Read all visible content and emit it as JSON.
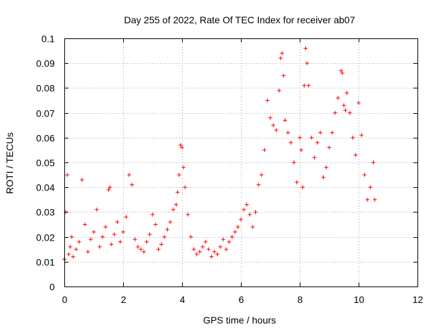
{
  "chart_data": {
    "type": "scatter",
    "title": "Day 255 of 2022, Rate Of TEC Index for receiver ab07",
    "xlabel": "GPS time / hours",
    "ylabel": "ROTI / TECUs",
    "xlim": [
      0,
      12
    ],
    "ylim": [
      0,
      0.1
    ],
    "xticks": [
      0,
      2,
      4,
      6,
      8,
      10,
      12
    ],
    "xtick_labels": [
      "0",
      "2",
      "4",
      "6",
      "8",
      "10",
      "12"
    ],
    "yticks": [
      0,
      0.01,
      0.02,
      0.03,
      0.04,
      0.05,
      0.06,
      0.07,
      0.08,
      0.09,
      0.1
    ],
    "ytick_labels": [
      "0",
      "0.01",
      "0.02",
      "0.03",
      "0.04",
      "0.05",
      "0.06",
      "0.07",
      "0.08",
      "0.09",
      "0.1"
    ],
    "grid": true,
    "marker": "+",
    "marker_color": "#ff0000",
    "series": [
      {
        "name": "ROTI",
        "x": [
          0.0,
          0.05,
          0.1,
          0.15,
          0.2,
          0.25,
          0.3,
          0.4,
          0.5,
          0.6,
          0.7,
          0.8,
          0.9,
          1.0,
          1.1,
          1.2,
          1.3,
          1.4,
          1.5,
          1.55,
          1.6,
          1.7,
          1.8,
          1.9,
          2.0,
          2.1,
          2.2,
          2.3,
          2.4,
          2.5,
          2.6,
          2.7,
          2.8,
          2.9,
          3.0,
          3.1,
          3.2,
          3.3,
          3.4,
          3.5,
          3.6,
          3.7,
          3.8,
          3.85,
          3.9,
          3.95,
          4.0,
          4.05,
          4.1,
          4.2,
          4.3,
          4.4,
          4.5,
          4.6,
          4.7,
          4.8,
          4.9,
          5.0,
          5.1,
          5.2,
          5.3,
          5.4,
          5.5,
          5.6,
          5.7,
          5.8,
          5.9,
          6.0,
          6.1,
          6.2,
          6.3,
          6.4,
          6.5,
          6.6,
          6.7,
          6.8,
          6.9,
          7.0,
          7.1,
          7.2,
          7.3,
          7.35,
          7.4,
          7.45,
          7.5,
          7.6,
          7.7,
          7.8,
          7.9,
          8.0,
          8.05,
          8.1,
          8.15,
          8.2,
          8.25,
          8.3,
          8.4,
          8.5,
          8.6,
          8.7,
          8.8,
          8.9,
          9.0,
          9.1,
          9.2,
          9.3,
          9.4,
          9.45,
          9.5,
          9.55,
          9.6,
          9.7,
          9.8,
          9.9,
          10.0,
          10.1,
          10.2,
          10.3,
          10.4,
          10.5,
          10.55
        ],
        "y": [
          0.011,
          0.03,
          0.045,
          0.013,
          0.016,
          0.02,
          0.012,
          0.015,
          0.018,
          0.043,
          0.025,
          0.014,
          0.019,
          0.022,
          0.031,
          0.016,
          0.02,
          0.024,
          0.039,
          0.04,
          0.017,
          0.021,
          0.026,
          0.018,
          0.022,
          0.028,
          0.045,
          0.041,
          0.019,
          0.016,
          0.015,
          0.014,
          0.018,
          0.021,
          0.029,
          0.025,
          0.015,
          0.017,
          0.02,
          0.023,
          0.026,
          0.031,
          0.033,
          0.038,
          0.045,
          0.057,
          0.056,
          0.048,
          0.04,
          0.029,
          0.02,
          0.015,
          0.013,
          0.014,
          0.016,
          0.018,
          0.015,
          0.012,
          0.014,
          0.013,
          0.016,
          0.019,
          0.015,
          0.018,
          0.02,
          0.022,
          0.024,
          0.027,
          0.031,
          0.033,
          0.029,
          0.024,
          0.03,
          0.041,
          0.045,
          0.055,
          0.075,
          0.068,
          0.065,
          0.063,
          0.079,
          0.092,
          0.094,
          0.085,
          0.067,
          0.062,
          0.058,
          0.05,
          0.042,
          0.06,
          0.055,
          0.04,
          0.081,
          0.096,
          0.09,
          0.081,
          0.06,
          0.052,
          0.058,
          0.062,
          0.044,
          0.048,
          0.056,
          0.062,
          0.07,
          0.076,
          0.087,
          0.086,
          0.073,
          0.071,
          0.078,
          0.07,
          0.06,
          0.053,
          0.074,
          0.061,
          0.045,
          0.035,
          0.04,
          0.05,
          0.035
        ]
      }
    ]
  }
}
